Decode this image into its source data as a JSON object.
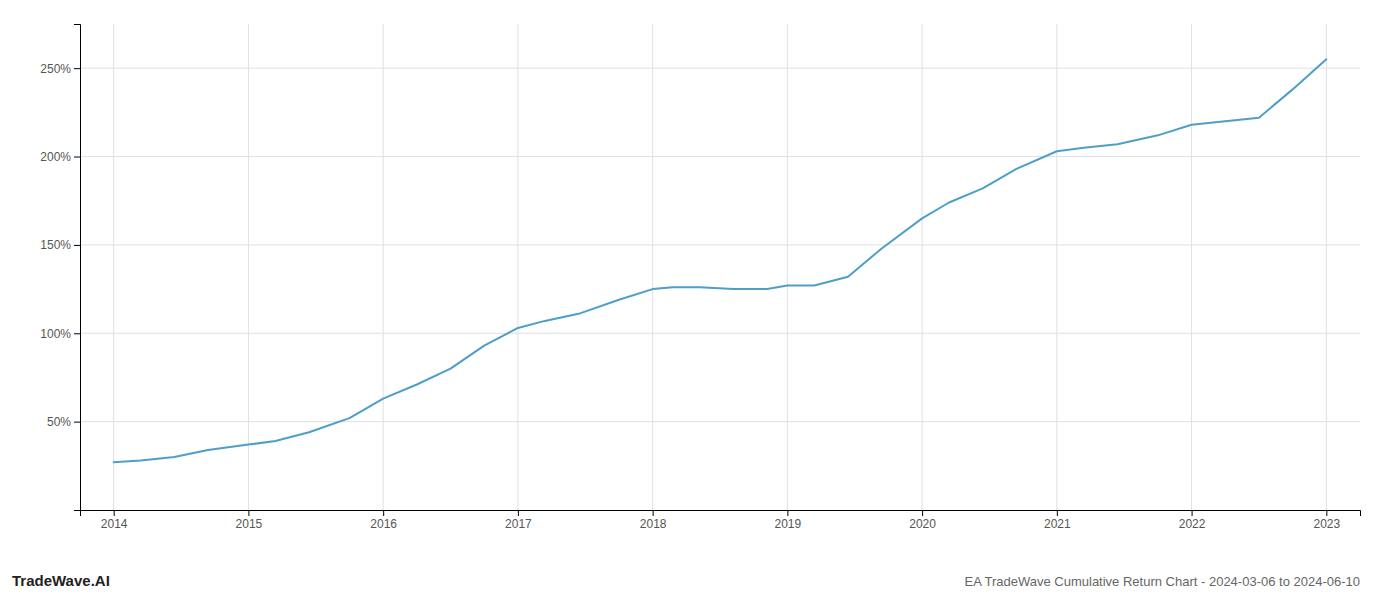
{
  "chart_data": {
    "type": "line",
    "title": "EA TradeWave Cumulative Return Chart - 2024-03-06 to 2024-06-10",
    "annotations": [
      "TradeWave.AI"
    ],
    "color": "#4e9ec8",
    "x": [
      2014.0,
      2014.2,
      2014.45,
      2014.7,
      2015.0,
      2015.2,
      2015.45,
      2015.75,
      2016.0,
      2016.25,
      2016.5,
      2016.75,
      2017.0,
      2017.2,
      2017.45,
      2017.75,
      2018.0,
      2018.15,
      2018.35,
      2018.6,
      2018.85,
      2019.0,
      2019.2,
      2019.45,
      2019.7,
      2020.0,
      2020.2,
      2020.45,
      2020.7,
      2021.0,
      2021.2,
      2021.45,
      2021.75,
      2022.0,
      2022.25,
      2022.5,
      2022.75,
      2023.0
    ],
    "values": [
      27,
      28,
      30,
      34,
      37,
      39,
      44,
      52,
      63,
      71,
      80,
      93,
      103,
      107,
      111,
      119,
      125,
      126,
      126,
      125,
      125,
      127,
      127,
      132,
      148,
      165,
      174,
      182,
      193,
      203,
      205,
      207,
      212,
      218,
      220,
      222,
      238,
      255
    ],
    "xlim": [
      2013.75,
      2023.25
    ],
    "xticks": [
      2014,
      2015,
      2016,
      2017,
      2018,
      2019,
      2020,
      2021,
      2022,
      2023
    ],
    "ylim": [
      0,
      275
    ],
    "yticks": [
      {
        "value": 50,
        "label": "50%"
      },
      {
        "value": 100,
        "label": "100%"
      },
      {
        "value": 150,
        "label": "150%"
      },
      {
        "value": 200,
        "label": "200%"
      },
      {
        "value": 250,
        "label": "250%"
      }
    ],
    "grid": true
  }
}
